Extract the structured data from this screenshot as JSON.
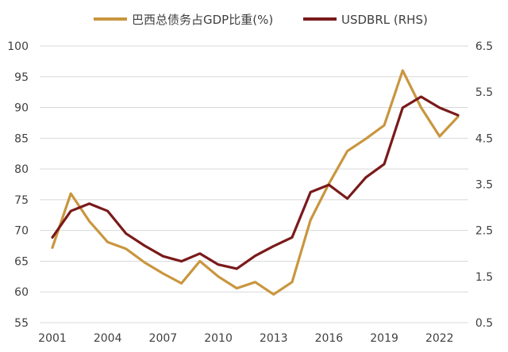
{
  "chart_data": {
    "type": "line",
    "legend_position": "top",
    "grid": true,
    "x": [
      2001,
      2002,
      2003,
      2004,
      2005,
      2006,
      2007,
      2008,
      2009,
      2010,
      2011,
      2012,
      2013,
      2014,
      2015,
      2016,
      2017,
      2018,
      2019,
      2020,
      2021,
      2022,
      2023
    ],
    "x_ticks": [
      "2001",
      "2004",
      "2007",
      "2010",
      "2013",
      "2016",
      "2019",
      "2022"
    ],
    "y_left": {
      "lim": [
        55,
        100
      ],
      "ticks": [
        "100",
        "95",
        "90",
        "85",
        "80",
        "75",
        "70",
        "65",
        "60",
        "55"
      ]
    },
    "y_right": {
      "lim": [
        0.5,
        6.5
      ],
      "ticks": [
        "6.5",
        "5.5",
        "4.5",
        "3.5",
        "2.5",
        "1.5",
        "0.5"
      ]
    },
    "series": [
      {
        "name": "巴西总债务占GDP比重(%)",
        "axis": "left",
        "color": "#C9963F",
        "values": [
          67.2,
          76.0,
          71.5,
          68.1,
          67.0,
          64.8,
          63.0,
          61.4,
          65.0,
          62.5,
          60.6,
          61.6,
          59.6,
          61.6,
          71.7,
          77.6,
          82.9,
          84.9,
          87.1,
          96.0,
          90.0,
          85.3,
          88.5
        ]
      },
      {
        "name": "USDBRL (RHS)",
        "axis": "right",
        "color": "#7A1A1A",
        "values": [
          2.35,
          2.92,
          3.08,
          2.92,
          2.43,
          2.17,
          1.94,
          1.83,
          2.0,
          1.76,
          1.67,
          1.95,
          2.16,
          2.35,
          3.33,
          3.49,
          3.19,
          3.65,
          3.94,
          5.16,
          5.4,
          5.16,
          5.0
        ]
      }
    ]
  }
}
